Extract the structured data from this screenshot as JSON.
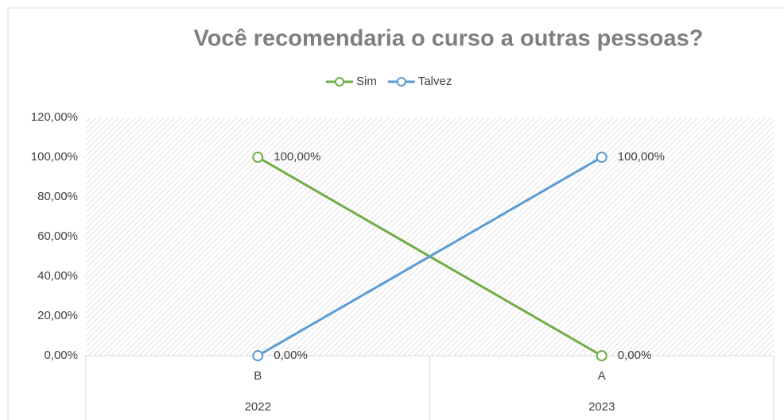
{
  "chart_data": {
    "type": "line",
    "title": "Você recomendaria o curso a outras pessoas?",
    "categories": [
      "B",
      "A"
    ],
    "category_groups": [
      "2022",
      "2023"
    ],
    "series": [
      {
        "name": "Sim",
        "color": "#70ad47",
        "values": [
          100,
          0
        ],
        "value_labels": [
          "100,00%",
          "0,00%"
        ]
      },
      {
        "name": "Talvez",
        "color": "#5b9bd5",
        "values": [
          0,
          100
        ],
        "value_labels": [
          "0,00%",
          "100,00%"
        ]
      }
    ],
    "ylim": [
      0,
      120
    ],
    "yticks": [
      {
        "value": 0,
        "label": "0,00%"
      },
      {
        "value": 20,
        "label": "20,00%"
      },
      {
        "value": 40,
        "label": "40,00%"
      },
      {
        "value": 60,
        "label": "60,00%"
      },
      {
        "value": 80,
        "label": "80,00%"
      },
      {
        "value": 100,
        "label": "100,00%"
      },
      {
        "value": 120,
        "label": "120,00%"
      }
    ],
    "legend": "top"
  }
}
